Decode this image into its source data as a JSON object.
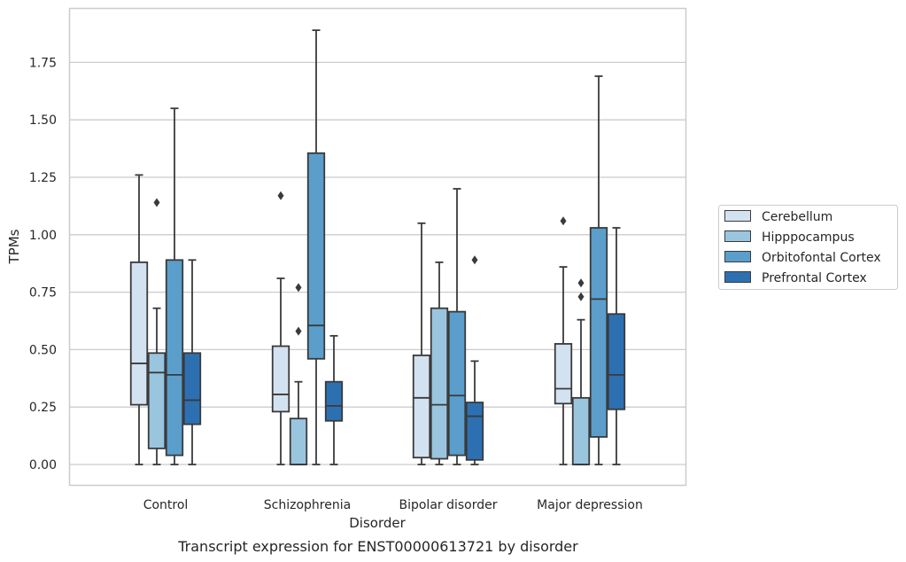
{
  "caption": "Transcript expression for ENST00000613721 by disorder",
  "chart_data": {
    "type": "box",
    "xlabel": "Disorder",
    "ylabel": "TPMs",
    "ylim": [
      -0.09,
      1.98
    ],
    "yticks": [
      "0.00",
      "0.25",
      "0.50",
      "0.75",
      "1.00",
      "1.25",
      "1.50",
      "1.75"
    ],
    "grid": "horizontal",
    "legend_position": "right",
    "categories": [
      "Control",
      "Schizophrenia",
      "Bipolar disorder",
      "Major depression"
    ],
    "series": [
      {
        "name": "Cerebellum",
        "color": "#d3e2f1",
        "boxes": [
          {
            "whislo": 0.0,
            "q1": 0.26,
            "med": 0.44,
            "q3": 0.88,
            "whishi": 1.26,
            "fliers": []
          },
          {
            "whislo": 0.0,
            "q1": 0.23,
            "med": 0.305,
            "q3": 0.515,
            "whishi": 0.81,
            "fliers": [
              1.17
            ]
          },
          {
            "whislo": 0.0,
            "q1": 0.03,
            "med": 0.29,
            "q3": 0.475,
            "whishi": 1.05,
            "fliers": []
          },
          {
            "whislo": 0.0,
            "q1": 0.265,
            "med": 0.33,
            "q3": 0.525,
            "whishi": 0.86,
            "fliers": [
              1.06
            ]
          }
        ]
      },
      {
        "name": "Hipppocampus",
        "color": "#9ac5df",
        "boxes": [
          {
            "whislo": 0.0,
            "q1": 0.07,
            "med": 0.4,
            "q3": 0.485,
            "whishi": 0.68,
            "fliers": [
              1.14
            ]
          },
          {
            "whislo": 0.0,
            "q1": 0.0,
            "med": 0.0,
            "q3": 0.2,
            "whishi": 0.36,
            "fliers": [
              0.58,
              0.77
            ]
          },
          {
            "whislo": 0.0,
            "q1": 0.025,
            "med": 0.26,
            "q3": 0.68,
            "whishi": 0.88,
            "fliers": []
          },
          {
            "whislo": 0.0,
            "q1": 0.0,
            "med": 0.0,
            "q3": 0.29,
            "whishi": 0.63,
            "fliers": [
              0.73,
              0.79
            ]
          }
        ]
      },
      {
        "name": "Orbitofontal Cortex",
        "color": "#5b9ecb",
        "boxes": [
          {
            "whislo": 0.0,
            "q1": 0.04,
            "med": 0.39,
            "q3": 0.89,
            "whishi": 1.55,
            "fliers": []
          },
          {
            "whislo": 0.0,
            "q1": 0.46,
            "med": 0.605,
            "q3": 1.355,
            "whishi": 1.89,
            "fliers": []
          },
          {
            "whislo": 0.0,
            "q1": 0.04,
            "med": 0.3,
            "q3": 0.665,
            "whishi": 1.2,
            "fliers": []
          },
          {
            "whislo": 0.0,
            "q1": 0.12,
            "med": 0.72,
            "q3": 1.03,
            "whishi": 1.69,
            "fliers": []
          }
        ]
      },
      {
        "name": "Prefrontal Cortex",
        "color": "#2d70b2",
        "boxes": [
          {
            "whislo": 0.0,
            "q1": 0.175,
            "med": 0.28,
            "q3": 0.485,
            "whishi": 0.89,
            "fliers": []
          },
          {
            "whislo": 0.0,
            "q1": 0.19,
            "med": 0.255,
            "q3": 0.36,
            "whishi": 0.56,
            "fliers": []
          },
          {
            "whislo": 0.0,
            "q1": 0.02,
            "med": 0.21,
            "q3": 0.27,
            "whishi": 0.45,
            "fliers": [
              0.89
            ]
          },
          {
            "whislo": 0.0,
            "q1": 0.24,
            "med": 0.39,
            "q3": 0.655,
            "whishi": 1.03,
            "fliers": []
          }
        ]
      }
    ]
  },
  "colors": {
    "grid": "#cccccc",
    "frame": "#cccccc",
    "line": "#3a3a3a",
    "text": "#262626"
  }
}
